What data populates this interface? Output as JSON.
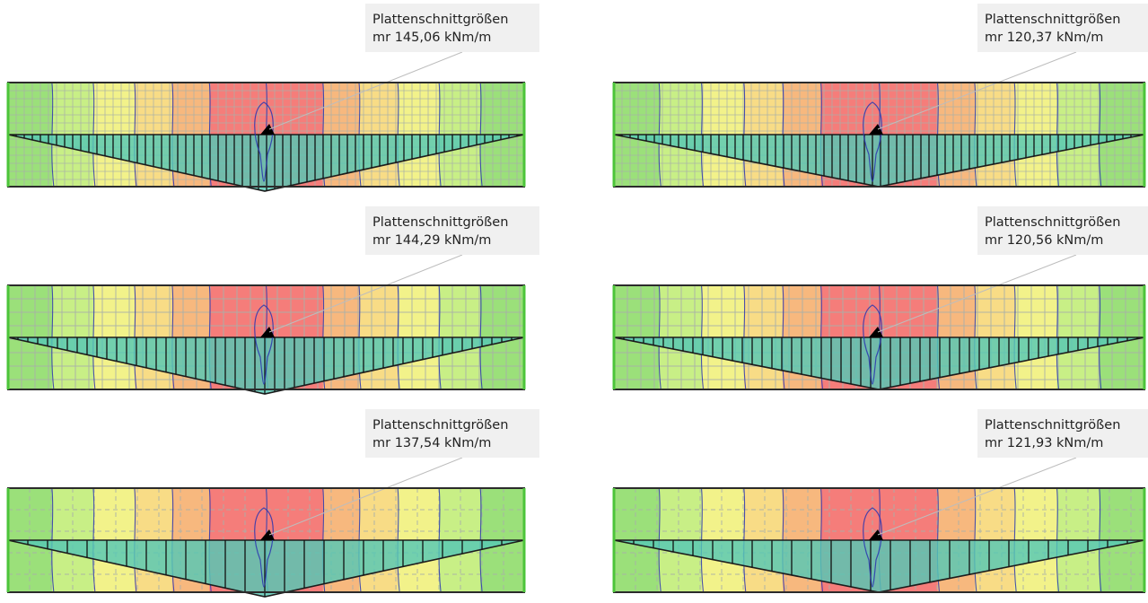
{
  "panels": [
    {
      "title": "Plattenschnittgrößen",
      "value": "mr 145,06 kNm/m"
    },
    {
      "title": "Plattenschnittgrößen",
      "value": "mr 120,37 kNm/m"
    },
    {
      "title": "Plattenschnittgrößen",
      "value": "mr 144,29 kNm/m"
    },
    {
      "title": "Plattenschnittgrößen",
      "value": "mr 120,56 kNm/m"
    },
    {
      "title": "Plattenschnittgrößen",
      "value": "mr 137,54 kNm/m"
    },
    {
      "title": "Plattenschnittgrößen",
      "value": "mr 121,93 kNm/m"
    }
  ],
  "colors": {
    "band_scale": [
      "#9be07a",
      "#c8ef86",
      "#f2f28a",
      "#f8dc86",
      "#f7b87e",
      "#f57d7a"
    ],
    "moment_fill": "#56c8b4",
    "edge": "#4cc43a",
    "contour": "#2a35b0",
    "grid": "#a9b0a9",
    "label_bg": "#f0f0f0"
  }
}
